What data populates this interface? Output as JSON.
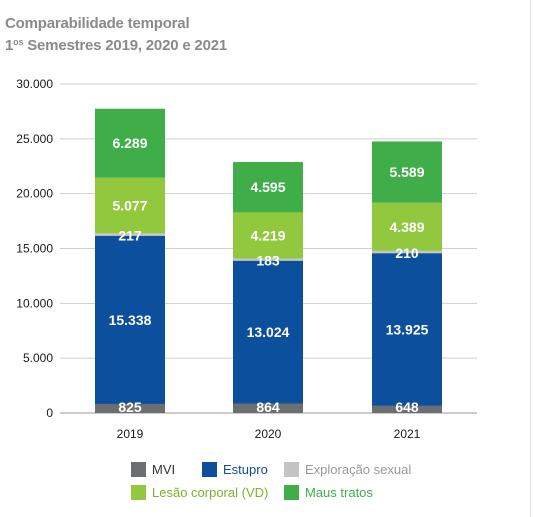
{
  "title": {
    "line1": "Comparabilidade temporal",
    "line2_pre": "1",
    "line2_sup": "os",
    "line2_post": " Semestres 2019, 2020 e 2021"
  },
  "colors": {
    "MVI": "#6d6e70",
    "Estupro": "#0c4f9c",
    "Exploracao": "#c4c4c4",
    "Lesao": "#92c83e",
    "Maus": "#3fae49",
    "grid": "#cfcfcf",
    "axis_text": "#1a1a1a"
  },
  "legend": [
    {
      "key": "MVI",
      "label": "MVI",
      "text_color": "#333333"
    },
    {
      "key": "Estupro",
      "label": "Estupro",
      "text_color": "#0c4f9c"
    },
    {
      "key": "Exploracao",
      "label": "Exploração sexual",
      "text_color": "#9a9a9a"
    },
    {
      "key": "Lesao",
      "label": "Lesão corporal (VD)",
      "text_color": "#7ab32c"
    },
    {
      "key": "Maus",
      "label": "Maus tratos",
      "text_color": "#3fae49"
    }
  ],
  "chart_data": {
    "type": "bar",
    "stacked": true,
    "categories": [
      "2019",
      "2020",
      "2021"
    ],
    "ylim": [
      0,
      30000
    ],
    "yticks": [
      "0",
      "5.000",
      "10.000",
      "15.000",
      "20.000",
      "25.000",
      "30.000"
    ],
    "grid": true,
    "legend_position": "bottom",
    "series": [
      {
        "name": "MVI",
        "key": "MVI",
        "values": [
          825,
          864,
          648
        ],
        "labels": [
          "825",
          "864",
          "648"
        ]
      },
      {
        "name": "Estupro",
        "key": "Estupro",
        "values": [
          15338,
          13024,
          13925
        ],
        "labels": [
          "15.338",
          "13.024",
          "13.925"
        ]
      },
      {
        "name": "Exploração sexual",
        "key": "Exploracao",
        "values": [
          217,
          183,
          210
        ],
        "labels": [
          "217",
          "183",
          "210"
        ]
      },
      {
        "name": "Lesão corporal (VD)",
        "key": "Lesao",
        "values": [
          5077,
          4219,
          4389
        ],
        "labels": [
          "5.077",
          "4.219",
          "4.389"
        ]
      },
      {
        "name": "Maus tratos",
        "key": "Maus",
        "values": [
          6289,
          4595,
          5589
        ],
        "labels": [
          "6.289",
          "4.595",
          "5.589"
        ]
      }
    ]
  }
}
